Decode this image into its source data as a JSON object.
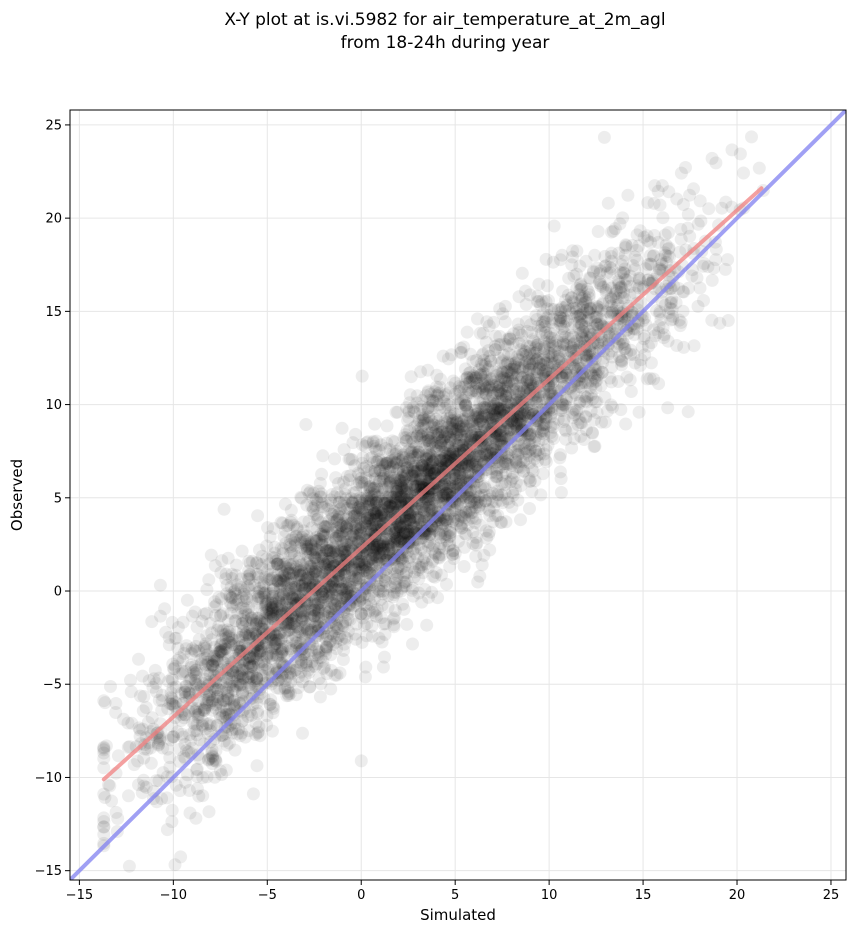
{
  "chart_data": {
    "type": "scatter",
    "title": [
      "X-Y plot at is.vi.5982 for air_temperature_at_2m_agl",
      "from 18-24h during year"
    ],
    "xlabel": "Simulated",
    "ylabel": "Observed",
    "xlim": [
      -15.5,
      25.8
    ],
    "ylim": [
      -15.5,
      25.8
    ],
    "xticks": [
      -15,
      -10,
      -5,
      0,
      5,
      10,
      15,
      20,
      25
    ],
    "yticks": [
      -15,
      -10,
      -5,
      0,
      5,
      10,
      15,
      20,
      25
    ],
    "tick_labels": [
      "−15",
      "−10",
      "−5",
      "0",
      "5",
      "10",
      "15",
      "20",
      "25"
    ],
    "grid": true,
    "scatter": {
      "color": "#000000",
      "opacity": 0.07,
      "approx_points": 5200,
      "x_range": [
        -13.7,
        21.4
      ],
      "relationship": "observed ≈ 0.9 × simulated + 2.4, residual std ≈ 2.4"
    },
    "lines": [
      {
        "name": "fit",
        "color": "#f08080",
        "x": [
          -13.7,
          21.3
        ],
        "y": [
          -10.1,
          21.6
        ]
      },
      {
        "name": "1:1",
        "color": "#8080f0",
        "x": [
          -15.5,
          25.8
        ],
        "y": [
          -15.5,
          25.8
        ]
      }
    ],
    "colors": {
      "fit": "#f08080",
      "identity": "#8080f0",
      "points": "#000000"
    }
  }
}
